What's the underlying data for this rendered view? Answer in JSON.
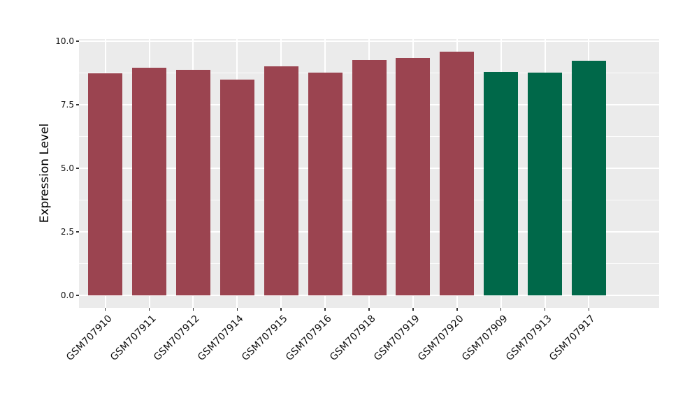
{
  "chart_data": {
    "type": "bar",
    "title": "",
    "xlabel": "",
    "ylabel": "Expression Level",
    "categories": [
      "GSM707910",
      "GSM707911",
      "GSM707912",
      "GSM707914",
      "GSM707915",
      "GSM707916",
      "GSM707918",
      "GSM707919",
      "GSM707920",
      "GSM707909",
      "GSM707913",
      "GSM707917"
    ],
    "values": [
      8.73,
      8.96,
      8.87,
      8.49,
      9.01,
      8.77,
      9.26,
      9.33,
      9.58,
      8.79,
      8.77,
      9.23
    ],
    "bar_colors": [
      "#9B4450",
      "#9B4450",
      "#9B4450",
      "#9B4450",
      "#9B4450",
      "#9B4450",
      "#9B4450",
      "#9B4450",
      "#9B4450",
      "#006849",
      "#006849",
      "#006849"
    ],
    "ytick_labels": [
      "0.0",
      "2.5",
      "5.0",
      "7.5",
      "10.0"
    ],
    "yticks": [
      0.0,
      2.5,
      5.0,
      7.5,
      10.0
    ],
    "minor_yticks": [
      1.25,
      3.75,
      6.25,
      8.75
    ],
    "ylim": [
      0,
      10
    ],
    "grid": true,
    "legend": "none",
    "colors": {
      "group_red": "#9B4450",
      "group_green": "#006849",
      "panel_background": "#EBEBEB",
      "gridline": "#FFFFFF",
      "figure_background": "#FFFFFF",
      "tick_text": "#111111"
    }
  }
}
